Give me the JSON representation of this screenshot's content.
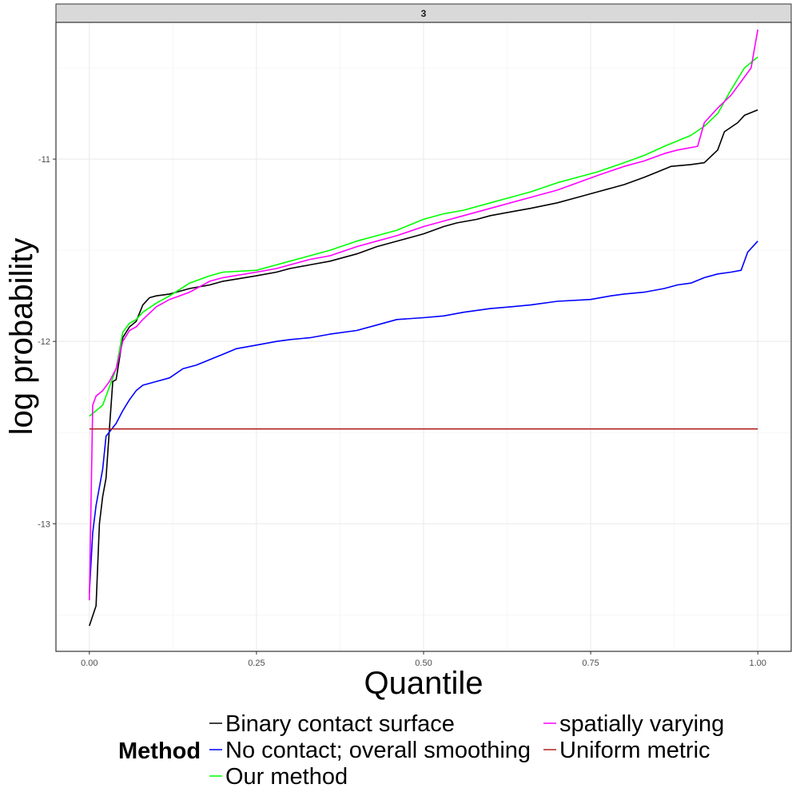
{
  "chart_data": {
    "type": "line",
    "facet_label": "3",
    "xlabel": "Quantile",
    "ylabel": "log probability",
    "xlim": [
      -0.05,
      1.05
    ],
    "ylim": [
      -13.7,
      -10.25
    ],
    "x_ticks": [
      {
        "value": 0,
        "label": "0.00"
      },
      {
        "value": 0.25,
        "label": "0.25"
      },
      {
        "value": 0.5,
        "label": "0.50"
      },
      {
        "value": 0.75,
        "label": "0.75"
      },
      {
        "value": 1,
        "label": "1.00"
      }
    ],
    "y_ticks": [
      {
        "value": -13,
        "label": "-13"
      },
      {
        "value": -12,
        "label": "-12"
      },
      {
        "value": -11,
        "label": "-11"
      }
    ],
    "grid": true,
    "legend": {
      "title": "Method",
      "position": "bottom"
    },
    "series": [
      {
        "name": "Binary contact surface",
        "color": "#000000",
        "points": [
          [
            0,
            -13.56
          ],
          [
            0.01,
            -13.45
          ],
          [
            0.015,
            -13.0
          ],
          [
            0.02,
            -12.85
          ],
          [
            0.025,
            -12.75
          ],
          [
            0.03,
            -12.48
          ],
          [
            0.035,
            -12.22
          ],
          [
            0.04,
            -12.21
          ],
          [
            0.05,
            -11.98
          ],
          [
            0.06,
            -11.92
          ],
          [
            0.07,
            -11.89
          ],
          [
            0.08,
            -11.8
          ],
          [
            0.09,
            -11.76
          ],
          [
            0.1,
            -11.75
          ],
          [
            0.12,
            -11.74
          ],
          [
            0.15,
            -11.71
          ],
          [
            0.18,
            -11.69
          ],
          [
            0.2,
            -11.67
          ],
          [
            0.25,
            -11.64
          ],
          [
            0.28,
            -11.62
          ],
          [
            0.3,
            -11.6
          ],
          [
            0.33,
            -11.58
          ],
          [
            0.36,
            -11.56
          ],
          [
            0.4,
            -11.52
          ],
          [
            0.43,
            -11.48
          ],
          [
            0.47,
            -11.44
          ],
          [
            0.5,
            -11.41
          ],
          [
            0.53,
            -11.37
          ],
          [
            0.55,
            -11.35
          ],
          [
            0.58,
            -11.33
          ],
          [
            0.6,
            -11.31
          ],
          [
            0.63,
            -11.29
          ],
          [
            0.66,
            -11.27
          ],
          [
            0.7,
            -11.24
          ],
          [
            0.73,
            -11.21
          ],
          [
            0.76,
            -11.18
          ],
          [
            0.8,
            -11.14
          ],
          [
            0.83,
            -11.1
          ],
          [
            0.85,
            -11.07
          ],
          [
            0.87,
            -11.04
          ],
          [
            0.9,
            -11.03
          ],
          [
            0.92,
            -11.02
          ],
          [
            0.94,
            -10.95
          ],
          [
            0.95,
            -10.85
          ],
          [
            0.97,
            -10.8
          ],
          [
            0.98,
            -10.76
          ],
          [
            1.0,
            -10.73
          ]
        ]
      },
      {
        "name": "No contact; overall smoothing",
        "color": "#0000ff",
        "points": [
          [
            0,
            -13.38
          ],
          [
            0.005,
            -13.05
          ],
          [
            0.01,
            -12.9
          ],
          [
            0.02,
            -12.7
          ],
          [
            0.025,
            -12.52
          ],
          [
            0.04,
            -12.45
          ],
          [
            0.05,
            -12.38
          ],
          [
            0.06,
            -12.32
          ],
          [
            0.07,
            -12.27
          ],
          [
            0.08,
            -12.24
          ],
          [
            0.1,
            -12.22
          ],
          [
            0.12,
            -12.2
          ],
          [
            0.14,
            -12.15
          ],
          [
            0.16,
            -12.13
          ],
          [
            0.18,
            -12.1
          ],
          [
            0.2,
            -12.07
          ],
          [
            0.22,
            -12.04
          ],
          [
            0.25,
            -12.02
          ],
          [
            0.28,
            -12.0
          ],
          [
            0.3,
            -11.99
          ],
          [
            0.33,
            -11.98
          ],
          [
            0.36,
            -11.96
          ],
          [
            0.4,
            -11.94
          ],
          [
            0.43,
            -11.91
          ],
          [
            0.46,
            -11.88
          ],
          [
            0.5,
            -11.87
          ],
          [
            0.53,
            -11.86
          ],
          [
            0.56,
            -11.84
          ],
          [
            0.6,
            -11.82
          ],
          [
            0.63,
            -11.81
          ],
          [
            0.66,
            -11.8
          ],
          [
            0.7,
            -11.78
          ],
          [
            0.75,
            -11.77
          ],
          [
            0.78,
            -11.75
          ],
          [
            0.8,
            -11.74
          ],
          [
            0.83,
            -11.73
          ],
          [
            0.86,
            -11.71
          ],
          [
            0.88,
            -11.69
          ],
          [
            0.9,
            -11.68
          ],
          [
            0.92,
            -11.65
          ],
          [
            0.94,
            -11.63
          ],
          [
            0.96,
            -11.62
          ],
          [
            0.975,
            -11.61
          ],
          [
            0.985,
            -11.51
          ],
          [
            1.0,
            -11.45
          ]
        ]
      },
      {
        "name": "Our method",
        "color": "#00ff00",
        "points": [
          [
            0,
            -12.41
          ],
          [
            0.01,
            -12.38
          ],
          [
            0.02,
            -12.35
          ],
          [
            0.03,
            -12.25
          ],
          [
            0.04,
            -12.15
          ],
          [
            0.05,
            -11.95
          ],
          [
            0.06,
            -11.9
          ],
          [
            0.07,
            -11.88
          ],
          [
            0.08,
            -11.84
          ],
          [
            0.1,
            -11.79
          ],
          [
            0.12,
            -11.75
          ],
          [
            0.15,
            -11.68
          ],
          [
            0.18,
            -11.64
          ],
          [
            0.2,
            -11.62
          ],
          [
            0.25,
            -11.61
          ],
          [
            0.28,
            -11.58
          ],
          [
            0.3,
            -11.56
          ],
          [
            0.33,
            -11.53
          ],
          [
            0.36,
            -11.5
          ],
          [
            0.4,
            -11.45
          ],
          [
            0.43,
            -11.42
          ],
          [
            0.46,
            -11.39
          ],
          [
            0.5,
            -11.33
          ],
          [
            0.53,
            -11.3
          ],
          [
            0.56,
            -11.28
          ],
          [
            0.6,
            -11.24
          ],
          [
            0.63,
            -11.21
          ],
          [
            0.66,
            -11.18
          ],
          [
            0.7,
            -11.13
          ],
          [
            0.73,
            -11.1
          ],
          [
            0.76,
            -11.07
          ],
          [
            0.8,
            -11.02
          ],
          [
            0.83,
            -10.98
          ],
          [
            0.86,
            -10.93
          ],
          [
            0.88,
            -10.9
          ],
          [
            0.9,
            -10.87
          ],
          [
            0.92,
            -10.82
          ],
          [
            0.94,
            -10.75
          ],
          [
            0.96,
            -10.62
          ],
          [
            0.98,
            -10.5
          ],
          [
            1.0,
            -10.44
          ]
        ]
      },
      {
        "name": "spatially varying",
        "color": "#ff00ff",
        "points": [
          [
            0,
            -13.42
          ],
          [
            0.005,
            -12.35
          ],
          [
            0.01,
            -12.3
          ],
          [
            0.02,
            -12.27
          ],
          [
            0.03,
            -12.22
          ],
          [
            0.04,
            -12.15
          ],
          [
            0.05,
            -12.0
          ],
          [
            0.06,
            -11.94
          ],
          [
            0.07,
            -11.92
          ],
          [
            0.08,
            -11.88
          ],
          [
            0.1,
            -11.81
          ],
          [
            0.12,
            -11.77
          ],
          [
            0.15,
            -11.73
          ],
          [
            0.18,
            -11.67
          ],
          [
            0.2,
            -11.65
          ],
          [
            0.25,
            -11.62
          ],
          [
            0.28,
            -11.6
          ],
          [
            0.3,
            -11.58
          ],
          [
            0.33,
            -11.55
          ],
          [
            0.36,
            -11.53
          ],
          [
            0.4,
            -11.48
          ],
          [
            0.43,
            -11.45
          ],
          [
            0.46,
            -11.42
          ],
          [
            0.5,
            -11.37
          ],
          [
            0.53,
            -11.34
          ],
          [
            0.56,
            -11.31
          ],
          [
            0.6,
            -11.27
          ],
          [
            0.63,
            -11.24
          ],
          [
            0.66,
            -11.21
          ],
          [
            0.7,
            -11.17
          ],
          [
            0.73,
            -11.13
          ],
          [
            0.76,
            -11.09
          ],
          [
            0.8,
            -11.04
          ],
          [
            0.83,
            -11.01
          ],
          [
            0.86,
            -10.97
          ],
          [
            0.88,
            -10.95
          ],
          [
            0.91,
            -10.93
          ],
          [
            0.92,
            -10.8
          ],
          [
            0.94,
            -10.72
          ],
          [
            0.96,
            -10.65
          ],
          [
            0.98,
            -10.55
          ],
          [
            0.99,
            -10.5
          ],
          [
            1.0,
            -10.29
          ]
        ]
      },
      {
        "name": "Uniform metric",
        "color": "#b22222",
        "points": [
          [
            0,
            -12.48
          ],
          [
            1.0,
            -12.48
          ]
        ]
      }
    ]
  }
}
